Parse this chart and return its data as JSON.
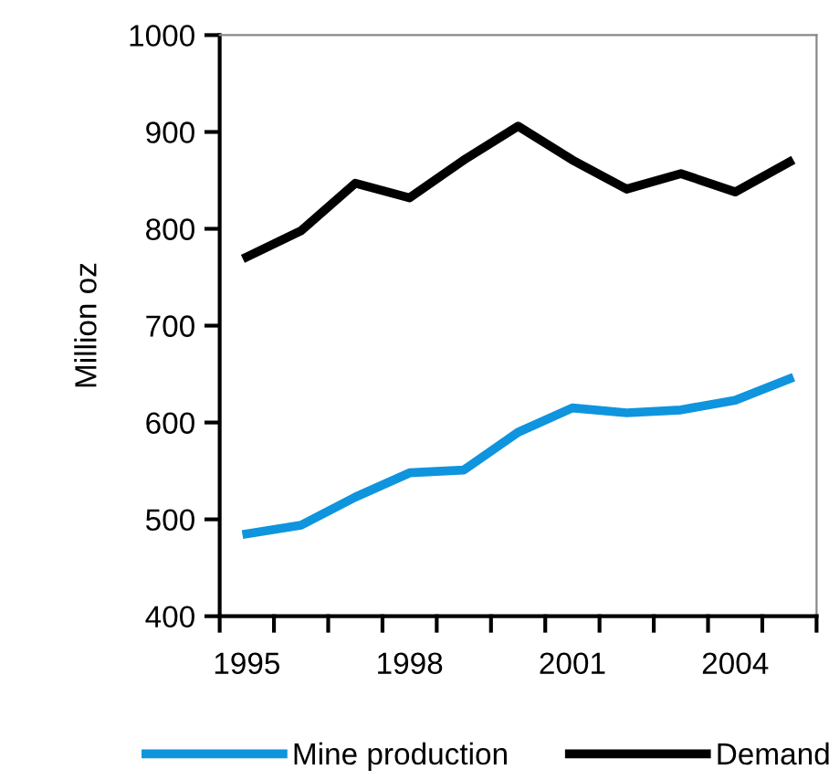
{
  "chart_data": {
    "type": "line",
    "ylabel": "Million oz",
    "categories": [
      "1995",
      null,
      null,
      "1998",
      null,
      null,
      "2001",
      null,
      null,
      "2004",
      null
    ],
    "series": [
      {
        "name": "Mine production",
        "color": "#0f94de",
        "values": [
          485,
          494,
          523,
          548,
          551,
          590,
          615,
          610,
          613,
          623,
          645
        ]
      },
      {
        "name": "Demand",
        "color": "#000000",
        "values": [
          771,
          798,
          847,
          832,
          871,
          906,
          871,
          841,
          857,
          838,
          869
        ]
      }
    ],
    "ylim": [
      400,
      1000
    ],
    "yticks": [
      400,
      500,
      600,
      700,
      800,
      900,
      1000
    ],
    "legend": "bottom",
    "marker": "none",
    "line_style": "solid",
    "grid": false
  }
}
